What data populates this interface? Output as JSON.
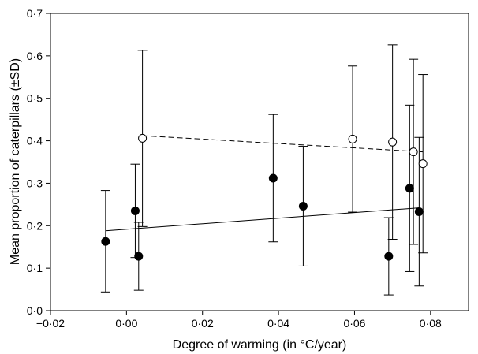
{
  "chart_data": {
    "type": "scatter",
    "title": "",
    "xlabel": "Degree of warming (in °C/year)",
    "ylabel": "Mean proportion of caterpillars (±SD)",
    "xlim": [
      -0.02,
      0.09
    ],
    "ylim": [
      0.0,
      0.7
    ],
    "x_ticks": [
      -0.02,
      0.0,
      0.02,
      0.04,
      0.06,
      0.08
    ],
    "x_tick_labels": [
      "−0·02",
      "0·00",
      "0·02",
      "0·04",
      "0·06",
      "0·08"
    ],
    "y_ticks": [
      0.0,
      0.1,
      0.2,
      0.3,
      0.4,
      0.5,
      0.6,
      0.7
    ],
    "y_tick_labels": [
      "0·0",
      "0·1",
      "0·2",
      "0·3",
      "0·4",
      "0·5",
      "0·6",
      "0·7"
    ],
    "grid": false,
    "legend": "none",
    "series": [
      {
        "marker": "filled-circle",
        "color": "#000000",
        "points": [
          {
            "x": -0.0055,
            "y": 0.163,
            "sd_low": 0.044,
            "sd_high": 0.283
          },
          {
            "x": 0.0023,
            "y": 0.235,
            "sd_low": 0.125,
            "sd_high": 0.345
          },
          {
            "x": 0.0032,
            "y": 0.128,
            "sd_low": 0.048,
            "sd_high": 0.208
          },
          {
            "x": 0.0386,
            "y": 0.312,
            "sd_low": 0.162,
            "sd_high": 0.462
          },
          {
            "x": 0.0465,
            "y": 0.246,
            "sd_low": 0.105,
            "sd_high": 0.387
          },
          {
            "x": 0.069,
            "y": 0.128,
            "sd_low": 0.037,
            "sd_high": 0.219
          },
          {
            "x": 0.0745,
            "y": 0.288,
            "sd_low": 0.092,
            "sd_high": 0.484
          },
          {
            "x": 0.077,
            "y": 0.233,
            "sd_low": 0.058,
            "sd_high": 0.408
          }
        ],
        "trend": {
          "style": "solid",
          "x": [
            -0.0055,
            0.077
          ],
          "y": [
            0.188,
            0.242
          ]
        }
      },
      {
        "marker": "open-circle",
        "color": "#000000",
        "points": [
          {
            "x": 0.0042,
            "y": 0.406,
            "sd_low": 0.198,
            "sd_high": 0.613
          },
          {
            "x": 0.0595,
            "y": 0.404,
            "sd_low": 0.232,
            "sd_high": 0.576
          },
          {
            "x": 0.07,
            "y": 0.397,
            "sd_low": 0.168,
            "sd_high": 0.626
          },
          {
            "x": 0.0755,
            "y": 0.374,
            "sd_low": 0.156,
            "sd_high": 0.592
          },
          {
            "x": 0.078,
            "y": 0.346,
            "sd_low": 0.136,
            "sd_high": 0.556
          }
        ],
        "trend": {
          "style": "dashed",
          "x": [
            0.0042,
            0.078
          ],
          "y": [
            0.412,
            0.374
          ]
        }
      }
    ]
  }
}
